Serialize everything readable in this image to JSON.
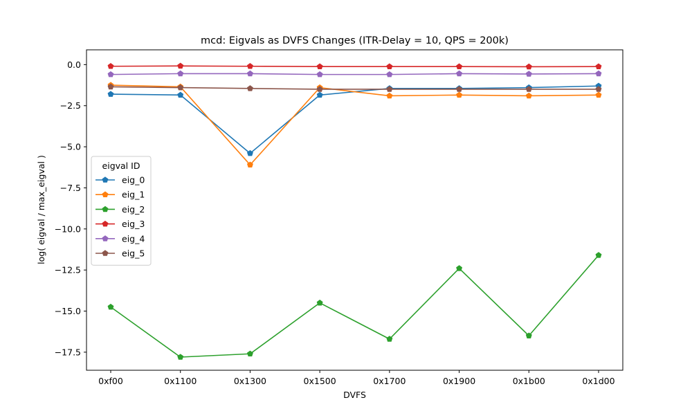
{
  "chart_data": {
    "type": "line",
    "title": "mcd: Eigvals as DVFS Changes (ITR-Delay = 10, QPS = 200k)",
    "xlabel": "DVFS",
    "ylabel": "log( eigval / max_eigval )",
    "categories": [
      "0xf00",
      "0x1100",
      "0x1300",
      "0x1500",
      "0x1700",
      "0x1900",
      "0x1b00",
      "0x1d00"
    ],
    "ylim": [
      -18.6,
      0.9
    ],
    "yticks": [
      0.0,
      -2.5,
      -5.0,
      -7.5,
      -10.0,
      -12.5,
      -15.0,
      -17.5
    ],
    "ytick_labels": [
      "0.0",
      "−2.5",
      "−5.0",
      "−7.5",
      "−10.0",
      "−12.5",
      "−15.0",
      "−17.5"
    ],
    "grid": false,
    "legend": {
      "title": "eigval ID",
      "placement": "center-left"
    },
    "series": [
      {
        "name": "eig_0",
        "color": "#1f77b4",
        "marker": "pentagon",
        "values": [
          -1.8,
          -1.85,
          -5.4,
          -1.85,
          -1.45,
          -1.45,
          -1.4,
          -1.3
        ]
      },
      {
        "name": "eig_1",
        "color": "#ff7f0e",
        "marker": "pentagon",
        "values": [
          -1.25,
          -1.35,
          -6.1,
          -1.4,
          -1.9,
          -1.85,
          -1.9,
          -1.85
        ]
      },
      {
        "name": "eig_2",
        "color": "#2ca02c",
        "marker": "pentagon",
        "values": [
          -14.75,
          -17.8,
          -17.6,
          -14.5,
          -16.7,
          -12.4,
          -16.5,
          -11.6
        ]
      },
      {
        "name": "eig_3",
        "color": "#d62728",
        "marker": "pentagon",
        "values": [
          -0.1,
          -0.08,
          -0.1,
          -0.12,
          -0.12,
          -0.12,
          -0.13,
          -0.12
        ]
      },
      {
        "name": "eig_4",
        "color": "#9467bd",
        "marker": "pentagon",
        "values": [
          -0.6,
          -0.55,
          -0.55,
          -0.6,
          -0.6,
          -0.55,
          -0.57,
          -0.55
        ]
      },
      {
        "name": "eig_5",
        "color": "#8c564b",
        "marker": "pentagon",
        "values": [
          -1.35,
          -1.4,
          -1.45,
          -1.5,
          -1.5,
          -1.5,
          -1.5,
          -1.5
        ]
      }
    ]
  }
}
